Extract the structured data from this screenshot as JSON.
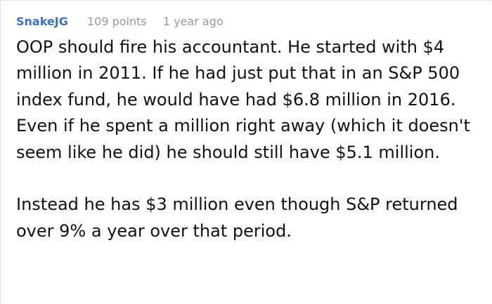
{
  "comment": {
    "username": "SnakeJG",
    "points": "109 points",
    "time": "1 year ago",
    "paragraphs": [
      "OOP should fire his accountant. He started with $4 million in 2011. If he had just put that in an S&P 500 index fund, he would have had $6.8 million in 2016. Even if he spent a million right away (which it doesn't seem like he did) he should still have $5.1 million.",
      "Instead he has $3 million even though S&P returned over 9% a year over that period."
    ]
  }
}
